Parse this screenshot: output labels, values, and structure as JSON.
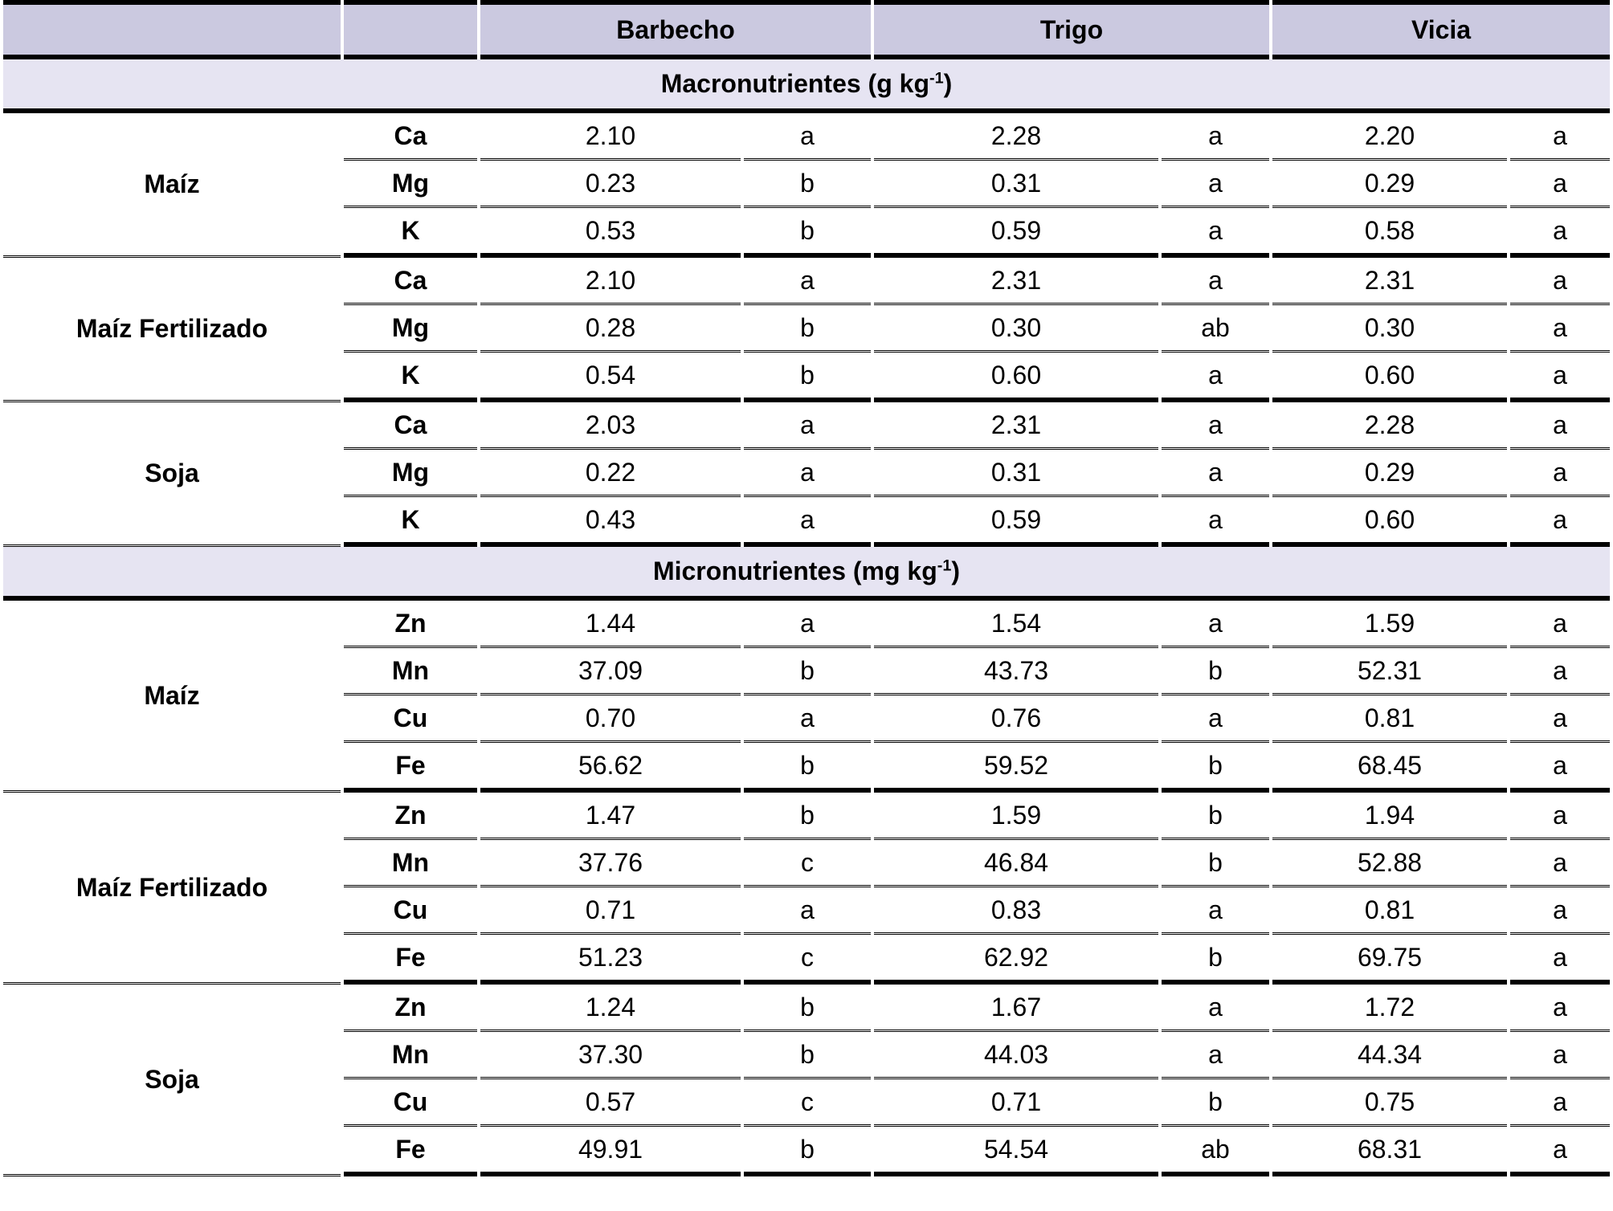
{
  "chart_data": {
    "type": "table",
    "treatments": [
      "Barbecho",
      "Trigo",
      "Vicia"
    ],
    "columns_per_treatment": [
      "value",
      "significance_letter"
    ],
    "sections": [
      {
        "title": "Macronutrientes (g kg-1)",
        "title_prefix": "Macronutrientes (g kg",
        "title_sup": "-1",
        "title_suffix": ")",
        "groups": [
          {
            "crop": "Maíz",
            "rows": [
              {
                "element": "Ca",
                "values": [
                  "2.10",
                  "2.28",
                  "2.20"
                ],
                "letters": [
                  "a",
                  "a",
                  "a"
                ]
              },
              {
                "element": "Mg",
                "values": [
                  "0.23",
                  "0.31",
                  "0.29"
                ],
                "letters": [
                  "b",
                  "a",
                  "a"
                ]
              },
              {
                "element": "K",
                "values": [
                  "0.53",
                  "0.59",
                  "0.58"
                ],
                "letters": [
                  "b",
                  "a",
                  "a"
                ]
              }
            ]
          },
          {
            "crop": "Maíz Fertilizado",
            "rows": [
              {
                "element": "Ca",
                "values": [
                  "2.10",
                  "2.31",
                  "2.31"
                ],
                "letters": [
                  "a",
                  "a",
                  "a"
                ]
              },
              {
                "element": "Mg",
                "values": [
                  "0.28",
                  "0.30",
                  "0.30"
                ],
                "letters": [
                  "b",
                  "ab",
                  "a"
                ]
              },
              {
                "element": "K",
                "values": [
                  "0.54",
                  "0.60",
                  "0.60"
                ],
                "letters": [
                  "b",
                  "a",
                  "a"
                ]
              }
            ]
          },
          {
            "crop": "Soja",
            "rows": [
              {
                "element": "Ca",
                "values": [
                  "2.03",
                  "2.31",
                  "2.28"
                ],
                "letters": [
                  "a",
                  "a",
                  "a"
                ]
              },
              {
                "element": "Mg",
                "values": [
                  "0.22",
                  "0.31",
                  "0.29"
                ],
                "letters": [
                  "a",
                  "a",
                  "a"
                ]
              },
              {
                "element": "K",
                "values": [
                  "0.43",
                  "0.59",
                  "0.60"
                ],
                "letters": [
                  "a",
                  "a",
                  "a"
                ]
              }
            ]
          }
        ]
      },
      {
        "title": "Micronutrientes (mg kg-1)",
        "title_prefix": "Micronutrientes (mg kg",
        "title_sup": "-1",
        "title_suffix": ")",
        "groups": [
          {
            "crop": "Maíz",
            "rows": [
              {
                "element": "Zn",
                "values": [
                  "1.44",
                  "1.54",
                  "1.59"
                ],
                "letters": [
                  "a",
                  "a",
                  "a"
                ]
              },
              {
                "element": "Mn",
                "values": [
                  "37.09",
                  "43.73",
                  "52.31"
                ],
                "letters": [
                  "b",
                  "b",
                  "a"
                ]
              },
              {
                "element": "Cu",
                "values": [
                  "0.70",
                  "0.76",
                  "0.81"
                ],
                "letters": [
                  "a",
                  "a",
                  "a"
                ]
              },
              {
                "element": "Fe",
                "values": [
                  "56.62",
                  "59.52",
                  "68.45"
                ],
                "letters": [
                  "b",
                  "b",
                  "a"
                ]
              }
            ]
          },
          {
            "crop": "Maíz Fertilizado",
            "rows": [
              {
                "element": "Zn",
                "values": [
                  "1.47",
                  "1.59",
                  "1.94"
                ],
                "letters": [
                  "b",
                  "b",
                  "a"
                ]
              },
              {
                "element": "Mn",
                "values": [
                  "37.76",
                  "46.84",
                  "52.88"
                ],
                "letters": [
                  "c",
                  "b",
                  "a"
                ]
              },
              {
                "element": "Cu",
                "values": [
                  "0.71",
                  "0.83",
                  "0.81"
                ],
                "letters": [
                  "a",
                  "a",
                  "a"
                ]
              },
              {
                "element": "Fe",
                "values": [
                  "51.23",
                  "62.92",
                  "69.75"
                ],
                "letters": [
                  "c",
                  "b",
                  "a"
                ]
              }
            ]
          },
          {
            "crop": "Soja",
            "rows": [
              {
                "element": "Zn",
                "values": [
                  "1.24",
                  "1.67",
                  "1.72"
                ],
                "letters": [
                  "b",
                  "a",
                  "a"
                ]
              },
              {
                "element": "Mn",
                "values": [
                  "37.30",
                  "44.03",
                  "44.34"
                ],
                "letters": [
                  "b",
                  "a",
                  "a"
                ]
              },
              {
                "element": "Cu",
                "values": [
                  "0.57",
                  "0.71",
                  "0.75"
                ],
                "letters": [
                  "c",
                  "b",
                  "a"
                ]
              },
              {
                "element": "Fe",
                "values": [
                  "49.91",
                  "54.54",
                  "68.31"
                ],
                "letters": [
                  "b",
                  "ab",
                  "a"
                ]
              }
            ]
          }
        ]
      }
    ]
  },
  "colors": {
    "header_bg": "#cbc9e0",
    "section_bg": "#e6e4f2",
    "border": "#000000"
  }
}
